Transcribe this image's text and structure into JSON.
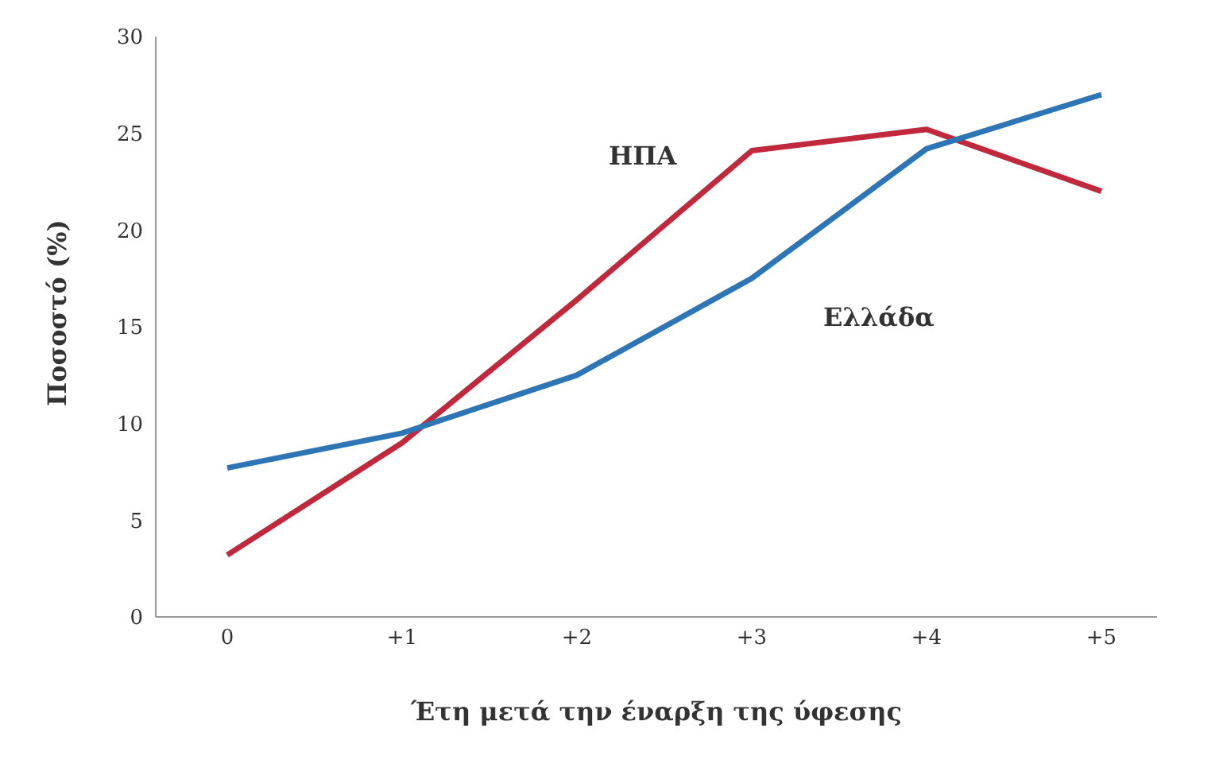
{
  "chart_data": {
    "type": "line",
    "xlabel": "Έτη μετά την έναρξη της ύφεσης",
    "ylabel": "Ποσοστό (%)",
    "categories": [
      "0",
      "+1",
      "+2",
      "+3",
      "+4",
      "+5"
    ],
    "series": [
      {
        "name": "ΗΠΑ",
        "color": "#c0283c",
        "values": [
          3.2,
          9.0,
          16.4,
          24.1,
          25.2,
          22.0
        ]
      },
      {
        "name": "Ελλάδα",
        "color": "#2e75b6",
        "values": [
          7.7,
          9.5,
          12.5,
          17.5,
          24.2,
          27.0
        ]
      }
    ],
    "ylim": [
      0,
      30
    ],
    "yticks": [
      0,
      5,
      10,
      15,
      20,
      25,
      30
    ],
    "grid": false,
    "legend": false,
    "marker": "none",
    "line_style": "solid"
  }
}
